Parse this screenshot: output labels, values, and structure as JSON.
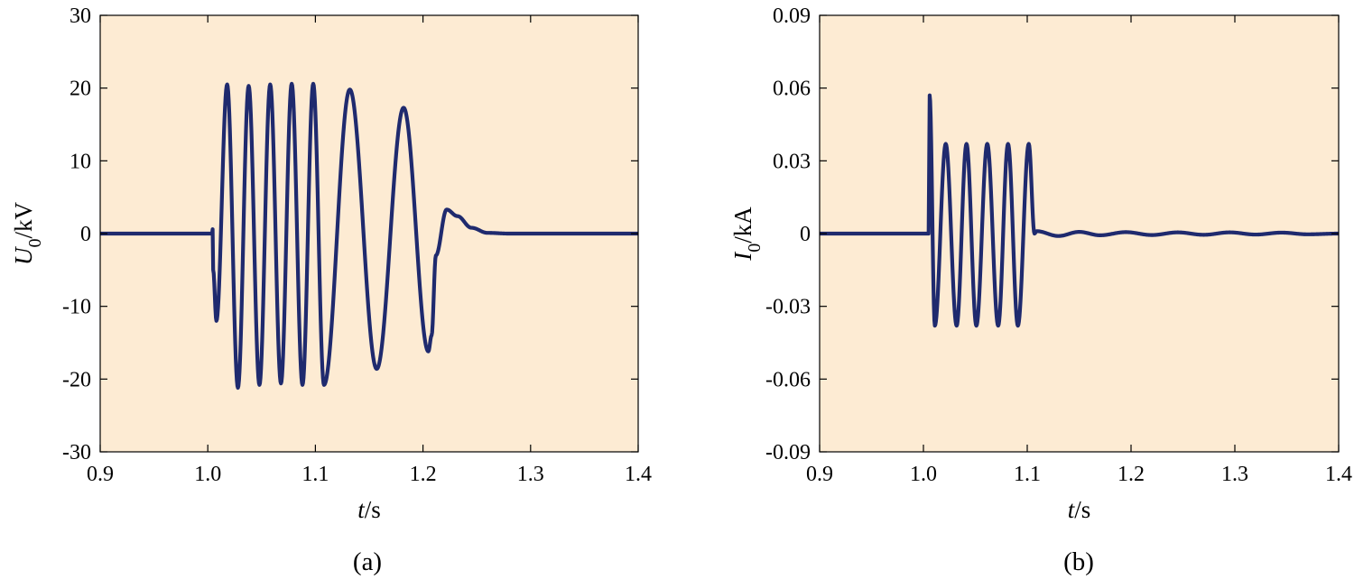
{
  "colors": {
    "plot_background": "#fdebd3",
    "trace": "#1f2a6e",
    "axis": "#000000"
  },
  "chart_data": [
    {
      "type": "line",
      "panel_label": "(a)",
      "xlabel_var": "t",
      "xlabel_unit": "/s",
      "ylabel_var": "U",
      "ylabel_sub": "0",
      "ylabel_unit": "/kV",
      "xlim": [
        0.9,
        1.4
      ],
      "ylim": [
        -30,
        30
      ],
      "xticks": [
        0.9,
        1.0,
        1.1,
        1.2,
        1.3,
        1.4
      ],
      "xtick_labels": [
        "0.9",
        "1.0",
        "1.1",
        "1.2",
        "1.3",
        "1.4"
      ],
      "yticks": [
        30,
        20,
        10,
        0,
        -10,
        -20,
        -30
      ],
      "ytick_labels": [
        "30",
        "20",
        "10",
        "0",
        "-10",
        "-20",
        "-30"
      ],
      "grid": false,
      "series": [
        {
          "x": [
            0.9,
            1.004,
            1.0045,
            1.005,
            1.008,
            1.018,
            1.028,
            1.038,
            1.048,
            1.058,
            1.068,
            1.078,
            1.088,
            1.098,
            1.108,
            1.132,
            1.157,
            1.182,
            1.205,
            1.208,
            1.212,
            1.222,
            1.232,
            1.245,
            1.26,
            1.28,
            1.4
          ],
          "y": [
            0,
            0,
            0.6,
            -5,
            -12,
            20.5,
            -21.2,
            20.3,
            -20.8,
            20.5,
            -20.6,
            20.6,
            -20.8,
            20.6,
            -20.8,
            19.8,
            -18.6,
            17.3,
            -16.2,
            -14,
            -3,
            3.3,
            2.4,
            0.8,
            0.1,
            0,
            0
          ]
        }
      ]
    },
    {
      "type": "line",
      "panel_label": "(b)",
      "xlabel_var": "t",
      "xlabel_unit": "/s",
      "ylabel_var": "I",
      "ylabel_sub": "0",
      "ylabel_unit": "/kA",
      "xlim": [
        0.9,
        1.4
      ],
      "ylim": [
        -0.09,
        0.09
      ],
      "xticks": [
        0.9,
        1.0,
        1.1,
        1.2,
        1.3,
        1.4
      ],
      "xtick_labels": [
        "0.9",
        "1.0",
        "1.1",
        "1.2",
        "1.3",
        "1.4"
      ],
      "yticks": [
        0.09,
        0.06,
        0.03,
        0,
        -0.03,
        -0.06,
        -0.09
      ],
      "ytick_labels": [
        "0.09",
        "0.06",
        "0.03",
        "0",
        "-0.03",
        "-0.06",
        "-0.09"
      ],
      "grid": false,
      "series": [
        {
          "x": [
            0.9,
            1.005,
            1.006,
            1.011,
            1.0215,
            1.032,
            1.0415,
            1.051,
            1.0615,
            1.072,
            1.0815,
            1.091,
            1.1015,
            1.107,
            1.109,
            1.13,
            1.15,
            1.17,
            1.195,
            1.22,
            1.245,
            1.27,
            1.295,
            1.32,
            1.345,
            1.37,
            1.4
          ],
          "y": [
            0,
            0,
            0.057,
            -0.038,
            0.037,
            -0.038,
            0.037,
            -0.038,
            0.037,
            -0.038,
            0.037,
            -0.038,
            0.037,
            0.0,
            0.001,
            -0.001,
            0.0007,
            -0.0007,
            0.0006,
            -0.0006,
            0.0005,
            -0.0005,
            0.0005,
            -0.0004,
            0.0004,
            -0.0003,
            0
          ]
        }
      ]
    }
  ]
}
